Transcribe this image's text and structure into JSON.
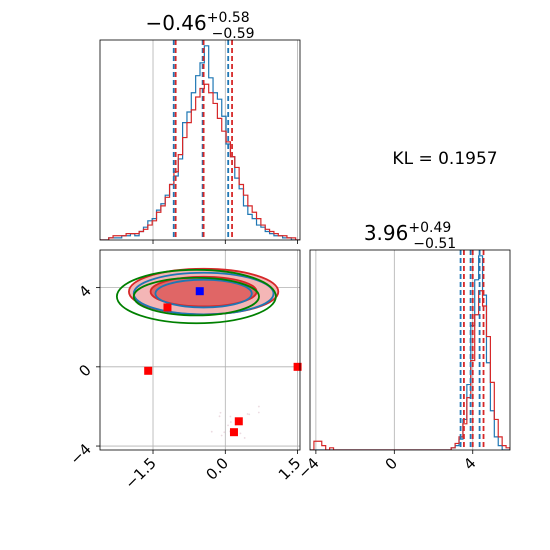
{
  "annotations": {
    "kl_label": "KL = 0.1957"
  },
  "colors": {
    "blue": "#1f77b4",
    "red": "#d62728",
    "green": "#008000",
    "marker_red": "#ff0000",
    "marker_blue": "#0000ff"
  },
  "chart_data": [
    {
      "type": "histogram",
      "panel": "top-left",
      "title": {
        "main": "−0.46",
        "sup": "+0.58",
        "sub": "−0.59"
      },
      "xlim": [
        -2.6,
        1.55
      ],
      "x_ticks": [
        -1.5,
        0.0,
        1.5
      ],
      "quantile_lines": {
        "blue": [
          -1.07,
          -0.47,
          0.06
        ],
        "red": [
          -1.03,
          -0.45,
          0.14
        ]
      },
      "bins": {
        "start": -2.6,
        "end": 1.55,
        "count": 46
      },
      "series": [
        {
          "color": "blue",
          "counts": [
            0,
            0,
            1,
            1,
            1,
            2,
            2,
            3,
            2,
            4,
            6,
            9,
            10,
            14,
            17,
            21,
            26,
            30,
            38,
            55,
            60,
            69,
            77,
            83,
            91,
            76,
            69,
            66,
            58,
            45,
            39,
            29,
            24,
            16,
            12,
            10,
            7,
            6,
            4,
            3,
            2,
            2,
            1,
            1,
            0,
            0
          ]
        },
        {
          "color": "red",
          "counts": [
            0,
            0,
            1,
            2,
            2,
            2,
            3,
            3,
            3,
            4,
            5,
            7,
            9,
            13,
            16,
            20,
            26,
            32,
            40,
            48,
            55,
            61,
            67,
            71,
            73,
            69,
            64,
            57,
            51,
            46,
            39,
            34,
            26,
            21,
            16,
            13,
            10,
            7,
            5,
            4,
            3,
            2,
            2,
            1,
            1,
            0
          ]
        }
      ]
    },
    {
      "type": "scatter-contour",
      "panel": "bottom-left",
      "xlim": [
        -2.6,
        1.55
      ],
      "ylim": [
        -4.2,
        5.9
      ],
      "x_ticks": [
        "−1.5",
        "0.0",
        "1.5"
      ],
      "y_ticks": [
        "−4",
        "0",
        "4"
      ],
      "truth_marker": {
        "x": -0.53,
        "y": 3.82,
        "color": "blue"
      },
      "red_markers": [
        {
          "x": -1.6,
          "y": -0.2
        },
        {
          "x": 1.5,
          "y": 0.0
        },
        {
          "x": 0.28,
          "y": -2.75
        },
        {
          "x": 0.18,
          "y": -3.3
        },
        {
          "x": -1.2,
          "y": 3.0
        }
      ],
      "contours": {
        "red": [
          {
            "cx": -0.45,
            "cy": 3.8,
            "rx": 1.1,
            "ry": 0.75
          },
          {
            "cx": -0.45,
            "cy": 3.8,
            "rx": 1.55,
            "ry": 1.15
          }
        ],
        "blue": [
          {
            "cx": -0.45,
            "cy": 3.7,
            "rx": 1.0,
            "ry": 0.7
          },
          {
            "cx": -0.45,
            "cy": 3.7,
            "rx": 1.45,
            "ry": 1.05
          }
        ],
        "green": [
          {
            "cx": -0.6,
            "cy": 3.55,
            "rx": 1.3,
            "ry": 0.95
          },
          {
            "cx": -0.6,
            "cy": 3.55,
            "rx": 1.65,
            "ry": 1.35
          }
        ]
      }
    },
    {
      "type": "histogram",
      "panel": "bottom-right",
      "title": {
        "main": "3.96",
        "sup": "+0.49",
        "sub": "−0.51"
      },
      "xlim": [
        -4.3,
        5.9
      ],
      "x_ticks": [
        "−4",
        "0",
        "4"
      ],
      "quantile_lines": {
        "blue": [
          3.38,
          3.89,
          4.35
        ],
        "red": [
          3.55,
          4.0,
          4.55
        ]
      },
      "bins": {
        "start": -4.3,
        "end": 5.9,
        "count": 51
      },
      "series": [
        {
          "color": "blue",
          "counts": [
            0,
            0,
            0,
            0,
            0,
            0,
            0,
            0,
            0,
            0,
            0,
            0,
            0,
            0,
            0,
            0,
            0,
            0,
            0,
            0,
            0,
            0,
            0,
            0,
            0,
            0,
            0,
            0,
            0,
            0,
            0,
            0,
            0,
            0,
            0,
            0,
            1,
            2,
            5,
            14,
            30,
            57,
            78,
            89,
            71,
            40,
            18,
            6,
            2,
            0,
            0
          ]
        },
        {
          "color": "red",
          "counts": [
            0,
            4,
            4,
            2,
            0,
            1,
            0,
            0,
            0,
            0,
            0,
            0,
            0,
            0,
            0,
            0,
            0,
            0,
            0,
            0,
            0,
            0,
            0,
            0,
            0,
            0,
            0,
            0,
            0,
            0,
            0,
            0,
            0,
            0,
            0,
            0,
            1,
            3,
            6,
            12,
            24,
            41,
            62,
            73,
            66,
            52,
            31,
            14,
            6,
            2,
            1
          ]
        }
      ]
    }
  ]
}
